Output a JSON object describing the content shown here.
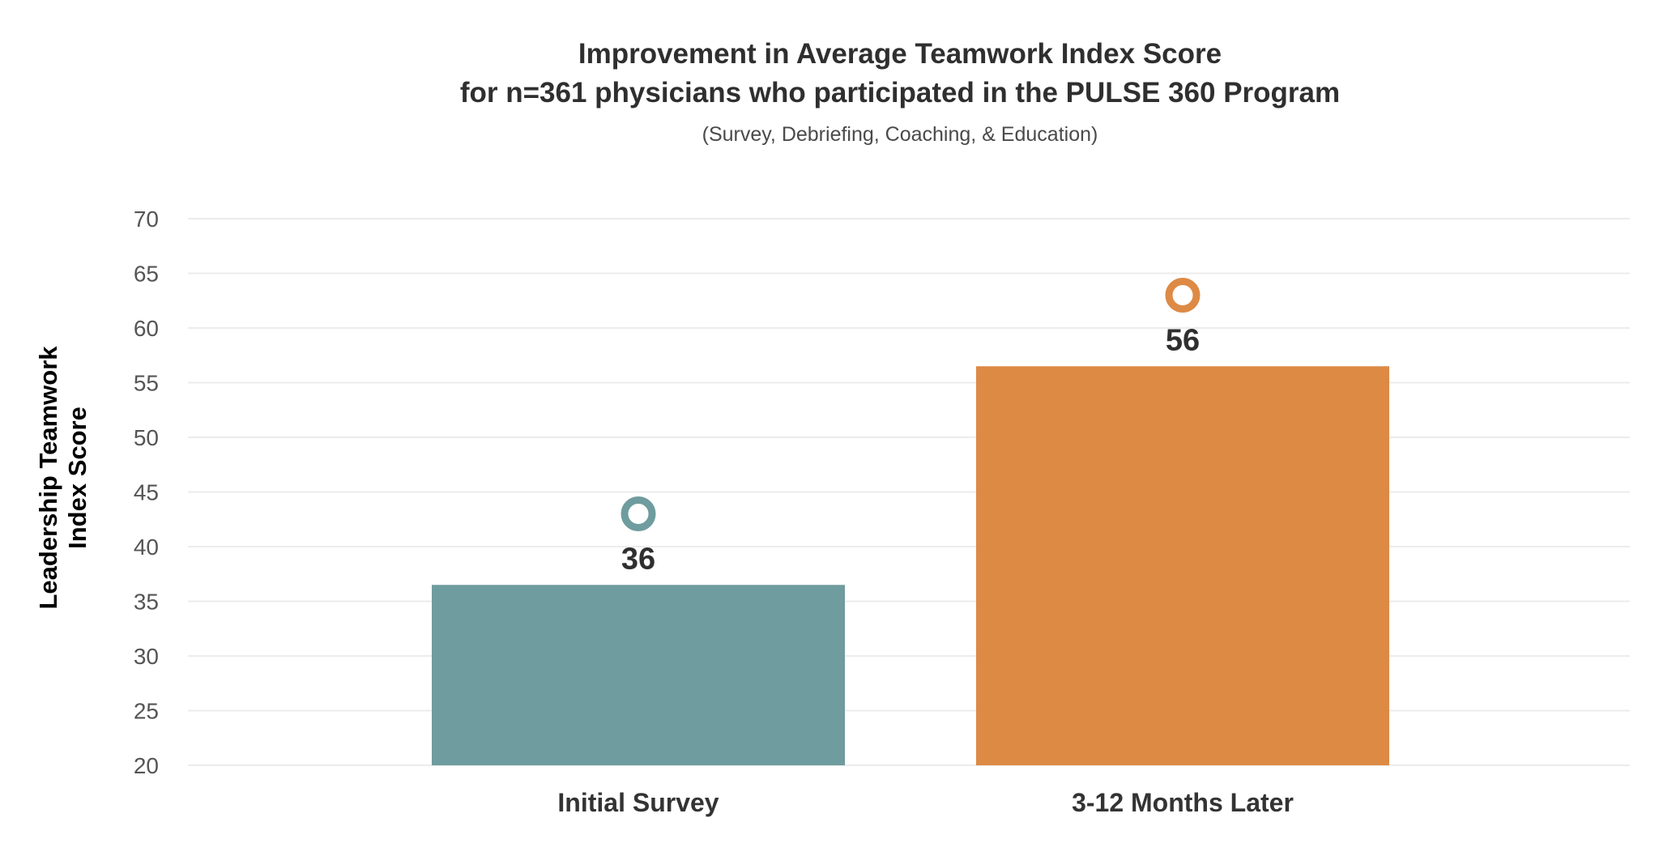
{
  "chart_data": {
    "type": "bar",
    "title_lines": [
      "Improvement in Average Teamwork Index Score",
      "for n=361 physicians who participated in the PULSE 360 Program"
    ],
    "subtitle": "(Survey, Debriefing, Coaching, & Education)",
    "ylabel_lines": [
      "Leadership Teamwork",
      "Index Score"
    ],
    "xlabel": "",
    "categories": [
      "Initial Survey",
      "3-12 Months Later"
    ],
    "values": [
      36.5,
      56.5
    ],
    "data_labels": [
      "36",
      "56"
    ],
    "marker_values": [
      43,
      63
    ],
    "colors": [
      "#6f9c9e",
      "#dd8a45"
    ],
    "yticks": [
      "20",
      "25",
      "30",
      "35",
      "40",
      "45",
      "50",
      "55",
      "60",
      "65",
      "70"
    ],
    "ylim": [
      20,
      70
    ],
    "grid": true,
    "legend": "none"
  }
}
